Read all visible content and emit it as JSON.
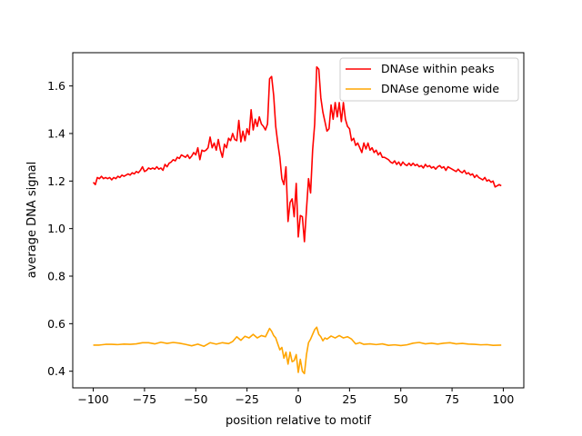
{
  "chart_data": {
    "type": "line",
    "title": "",
    "xlabel": "position relative to motif",
    "ylabel": "average DNA signal",
    "xlim": [
      -110,
      110
    ],
    "ylim": [
      0.33,
      1.74
    ],
    "xticks": [
      -100,
      -75,
      -50,
      -25,
      0,
      25,
      50,
      75,
      100
    ],
    "xtick_labels": [
      "−100",
      "−75",
      "−50",
      "−25",
      "0",
      "25",
      "50",
      "75",
      "100"
    ],
    "yticks": [
      0.4,
      0.6,
      0.8,
      1.0,
      1.2,
      1.4,
      1.6
    ],
    "ytick_labels": [
      "0.4",
      "0.6",
      "0.8",
      "1.0",
      "1.2",
      "1.4",
      "1.6"
    ],
    "grid": false,
    "legend": "top-right",
    "series": [
      {
        "name": "DNAse within peaks",
        "color": "#ff0000",
        "points": [
          [
            -100,
            1.195
          ],
          [
            -99,
            1.185
          ],
          [
            -98,
            1.215
          ],
          [
            -97,
            1.21
          ],
          [
            -96,
            1.22
          ],
          [
            -95,
            1.21
          ],
          [
            -94,
            1.215
          ],
          [
            -93,
            1.21
          ],
          [
            -92,
            1.215
          ],
          [
            -91,
            1.205
          ],
          [
            -90,
            1.215
          ],
          [
            -89,
            1.21
          ],
          [
            -88,
            1.22
          ],
          [
            -87,
            1.215
          ],
          [
            -86,
            1.225
          ],
          [
            -85,
            1.22
          ],
          [
            -84,
            1.225
          ],
          [
            -83,
            1.23
          ],
          [
            -82,
            1.225
          ],
          [
            -81,
            1.235
          ],
          [
            -80,
            1.23
          ],
          [
            -79,
            1.24
          ],
          [
            -78,
            1.235
          ],
          [
            -77,
            1.245
          ],
          [
            -76,
            1.26
          ],
          [
            -75,
            1.24
          ],
          [
            -74,
            1.245
          ],
          [
            -73,
            1.255
          ],
          [
            -72,
            1.25
          ],
          [
            -71,
            1.255
          ],
          [
            -70,
            1.25
          ],
          [
            -69,
            1.26
          ],
          [
            -68,
            1.25
          ],
          [
            -67,
            1.255
          ],
          [
            -66,
            1.245
          ],
          [
            -65,
            1.27
          ],
          [
            -64,
            1.26
          ],
          [
            -63,
            1.275
          ],
          [
            -62,
            1.28
          ],
          [
            -61,
            1.29
          ],
          [
            -60,
            1.285
          ],
          [
            -59,
            1.3
          ],
          [
            -58,
            1.295
          ],
          [
            -57,
            1.31
          ],
          [
            -56,
            1.305
          ],
          [
            -55,
            1.3
          ],
          [
            -54,
            1.31
          ],
          [
            -53,
            1.295
          ],
          [
            -52,
            1.305
          ],
          [
            -51,
            1.32
          ],
          [
            -50,
            1.31
          ],
          [
            -49,
            1.34
          ],
          [
            -48,
            1.29
          ],
          [
            -47,
            1.33
          ],
          [
            -46,
            1.325
          ],
          [
            -45,
            1.33
          ],
          [
            -44,
            1.34
          ],
          [
            -43,
            1.385
          ],
          [
            -42,
            1.34
          ],
          [
            -41,
            1.36
          ],
          [
            -40,
            1.33
          ],
          [
            -39,
            1.375
          ],
          [
            -38,
            1.33
          ],
          [
            -37,
            1.3
          ],
          [
            -36,
            1.355
          ],
          [
            -35,
            1.34
          ],
          [
            -34,
            1.38
          ],
          [
            -33,
            1.37
          ],
          [
            -32,
            1.4
          ],
          [
            -31,
            1.375
          ],
          [
            -30,
            1.37
          ],
          [
            -29,
            1.455
          ],
          [
            -28,
            1.365
          ],
          [
            -27,
            1.41
          ],
          [
            -26,
            1.37
          ],
          [
            -25,
            1.42
          ],
          [
            -24,
            1.395
          ],
          [
            -23,
            1.5
          ],
          [
            -22,
            1.415
          ],
          [
            -21,
            1.46
          ],
          [
            -20,
            1.43
          ],
          [
            -19,
            1.47
          ],
          [
            -18,
            1.44
          ],
          [
            -17,
            1.43
          ],
          [
            -16,
            1.415
          ],
          [
            -15,
            1.44
          ],
          [
            -14,
            1.63
          ],
          [
            -13,
            1.64
          ],
          [
            -12,
            1.56
          ],
          [
            -11,
            1.43
          ],
          [
            -10,
            1.36
          ],
          [
            -9,
            1.3
          ],
          [
            -8,
            1.21
          ],
          [
            -7,
            1.185
          ],
          [
            -6,
            1.26
          ],
          [
            -5,
            1.03
          ],
          [
            -4,
            1.11
          ],
          [
            -3,
            1.125
          ],
          [
            -2,
            1.05
          ],
          [
            -1,
            1.19
          ],
          [
            0,
            0.965
          ],
          [
            1,
            1.055
          ],
          [
            2,
            1.05
          ],
          [
            3,
            0.945
          ],
          [
            4,
            1.08
          ],
          [
            5,
            1.21
          ],
          [
            6,
            1.15
          ],
          [
            7,
            1.33
          ],
          [
            8,
            1.44
          ],
          [
            9,
            1.68
          ],
          [
            10,
            1.67
          ],
          [
            11,
            1.55
          ],
          [
            12,
            1.49
          ],
          [
            13,
            1.45
          ],
          [
            14,
            1.41
          ],
          [
            15,
            1.42
          ],
          [
            16,
            1.52
          ],
          [
            17,
            1.46
          ],
          [
            18,
            1.53
          ],
          [
            19,
            1.47
          ],
          [
            20,
            1.53
          ],
          [
            21,
            1.45
          ],
          [
            22,
            1.53
          ],
          [
            23,
            1.46
          ],
          [
            24,
            1.43
          ],
          [
            25,
            1.42
          ],
          [
            26,
            1.37
          ],
          [
            27,
            1.38
          ],
          [
            28,
            1.35
          ],
          [
            29,
            1.36
          ],
          [
            30,
            1.34
          ],
          [
            31,
            1.32
          ],
          [
            32,
            1.36
          ],
          [
            33,
            1.335
          ],
          [
            34,
            1.36
          ],
          [
            35,
            1.33
          ],
          [
            36,
            1.34
          ],
          [
            37,
            1.32
          ],
          [
            38,
            1.33
          ],
          [
            39,
            1.31
          ],
          [
            40,
            1.32
          ],
          [
            41,
            1.3
          ],
          [
            42,
            1.3
          ],
          [
            43,
            1.295
          ],
          [
            44,
            1.29
          ],
          [
            45,
            1.28
          ],
          [
            46,
            1.275
          ],
          [
            47,
            1.285
          ],
          [
            48,
            1.27
          ],
          [
            49,
            1.28
          ],
          [
            50,
            1.265
          ],
          [
            51,
            1.28
          ],
          [
            52,
            1.27
          ],
          [
            53,
            1.265
          ],
          [
            54,
            1.275
          ],
          [
            55,
            1.265
          ],
          [
            56,
            1.275
          ],
          [
            57,
            1.265
          ],
          [
            58,
            1.27
          ],
          [
            59,
            1.26
          ],
          [
            60,
            1.265
          ],
          [
            61,
            1.255
          ],
          [
            62,
            1.27
          ],
          [
            63,
            1.26
          ],
          [
            64,
            1.265
          ],
          [
            65,
            1.255
          ],
          [
            66,
            1.26
          ],
          [
            67,
            1.25
          ],
          [
            68,
            1.26
          ],
          [
            69,
            1.265
          ],
          [
            70,
            1.255
          ],
          [
            71,
            1.26
          ],
          [
            72,
            1.245
          ],
          [
            73,
            1.26
          ],
          [
            74,
            1.255
          ],
          [
            75,
            1.25
          ],
          [
            76,
            1.245
          ],
          [
            77,
            1.24
          ],
          [
            78,
            1.25
          ],
          [
            79,
            1.24
          ],
          [
            80,
            1.235
          ],
          [
            81,
            1.245
          ],
          [
            82,
            1.23
          ],
          [
            83,
            1.235
          ],
          [
            84,
            1.225
          ],
          [
            85,
            1.23
          ],
          [
            86,
            1.215
          ],
          [
            87,
            1.225
          ],
          [
            88,
            1.215
          ],
          [
            89,
            1.21
          ],
          [
            90,
            1.205
          ],
          [
            91,
            1.215
          ],
          [
            92,
            1.2
          ],
          [
            93,
            1.205
          ],
          [
            94,
            1.195
          ],
          [
            95,
            1.2
          ],
          [
            96,
            1.175
          ],
          [
            97,
            1.18
          ],
          [
            98,
            1.185
          ],
          [
            99,
            1.18
          ]
        ]
      },
      {
        "name": "DNAse genome wide",
        "color": "#ffa500",
        "points": [
          [
            -100,
            0.51
          ],
          [
            -97,
            0.51
          ],
          [
            -94,
            0.513
          ],
          [
            -91,
            0.513
          ],
          [
            -88,
            0.512
          ],
          [
            -85,
            0.514
          ],
          [
            -82,
            0.513
          ],
          [
            -79,
            0.515
          ],
          [
            -76,
            0.52
          ],
          [
            -73,
            0.52
          ],
          [
            -70,
            0.515
          ],
          [
            -67,
            0.522
          ],
          [
            -64,
            0.517
          ],
          [
            -61,
            0.521
          ],
          [
            -58,
            0.518
          ],
          [
            -55,
            0.513
          ],
          [
            -52,
            0.507
          ],
          [
            -49,
            0.514
          ],
          [
            -46,
            0.505
          ],
          [
            -43,
            0.52
          ],
          [
            -40,
            0.514
          ],
          [
            -37,
            0.52
          ],
          [
            -34,
            0.516
          ],
          [
            -32,
            0.525
          ],
          [
            -30,
            0.545
          ],
          [
            -28,
            0.53
          ],
          [
            -26,
            0.547
          ],
          [
            -24,
            0.54
          ],
          [
            -22,
            0.555
          ],
          [
            -20,
            0.54
          ],
          [
            -18,
            0.55
          ],
          [
            -16,
            0.545
          ],
          [
            -14,
            0.58
          ],
          [
            -13,
            0.568
          ],
          [
            -12,
            0.55
          ],
          [
            -11,
            0.54
          ],
          [
            -10,
            0.515
          ],
          [
            -9,
            0.49
          ],
          [
            -8,
            0.5
          ],
          [
            -7,
            0.455
          ],
          [
            -6,
            0.48
          ],
          [
            -5,
            0.43
          ],
          [
            -4,
            0.48
          ],
          [
            -3,
            0.44
          ],
          [
            -2,
            0.445
          ],
          [
            -1,
            0.47
          ],
          [
            0,
            0.395
          ],
          [
            1,
            0.45
          ],
          [
            2,
            0.4
          ],
          [
            3,
            0.39
          ],
          [
            4,
            0.47
          ],
          [
            5,
            0.52
          ],
          [
            6,
            0.535
          ],
          [
            7,
            0.555
          ],
          [
            8,
            0.575
          ],
          [
            9,
            0.585
          ],
          [
            10,
            0.555
          ],
          [
            11,
            0.545
          ],
          [
            12,
            0.528
          ],
          [
            13,
            0.54
          ],
          [
            14,
            0.535
          ],
          [
            16,
            0.548
          ],
          [
            18,
            0.54
          ],
          [
            20,
            0.55
          ],
          [
            22,
            0.54
          ],
          [
            24,
            0.545
          ],
          [
            26,
            0.535
          ],
          [
            28,
            0.515
          ],
          [
            30,
            0.52
          ],
          [
            32,
            0.513
          ],
          [
            35,
            0.515
          ],
          [
            38,
            0.512
          ],
          [
            41,
            0.515
          ],
          [
            44,
            0.509
          ],
          [
            47,
            0.511
          ],
          [
            50,
            0.508
          ],
          [
            53,
            0.511
          ],
          [
            56,
            0.518
          ],
          [
            59,
            0.521
          ],
          [
            62,
            0.515
          ],
          [
            65,
            0.518
          ],
          [
            68,
            0.514
          ],
          [
            71,
            0.518
          ],
          [
            74,
            0.52
          ],
          [
            77,
            0.515
          ],
          [
            80,
            0.517
          ],
          [
            83,
            0.514
          ],
          [
            86,
            0.513
          ],
          [
            89,
            0.511
          ],
          [
            92,
            0.512
          ],
          [
            95,
            0.509
          ],
          [
            99,
            0.51
          ]
        ]
      }
    ]
  }
}
